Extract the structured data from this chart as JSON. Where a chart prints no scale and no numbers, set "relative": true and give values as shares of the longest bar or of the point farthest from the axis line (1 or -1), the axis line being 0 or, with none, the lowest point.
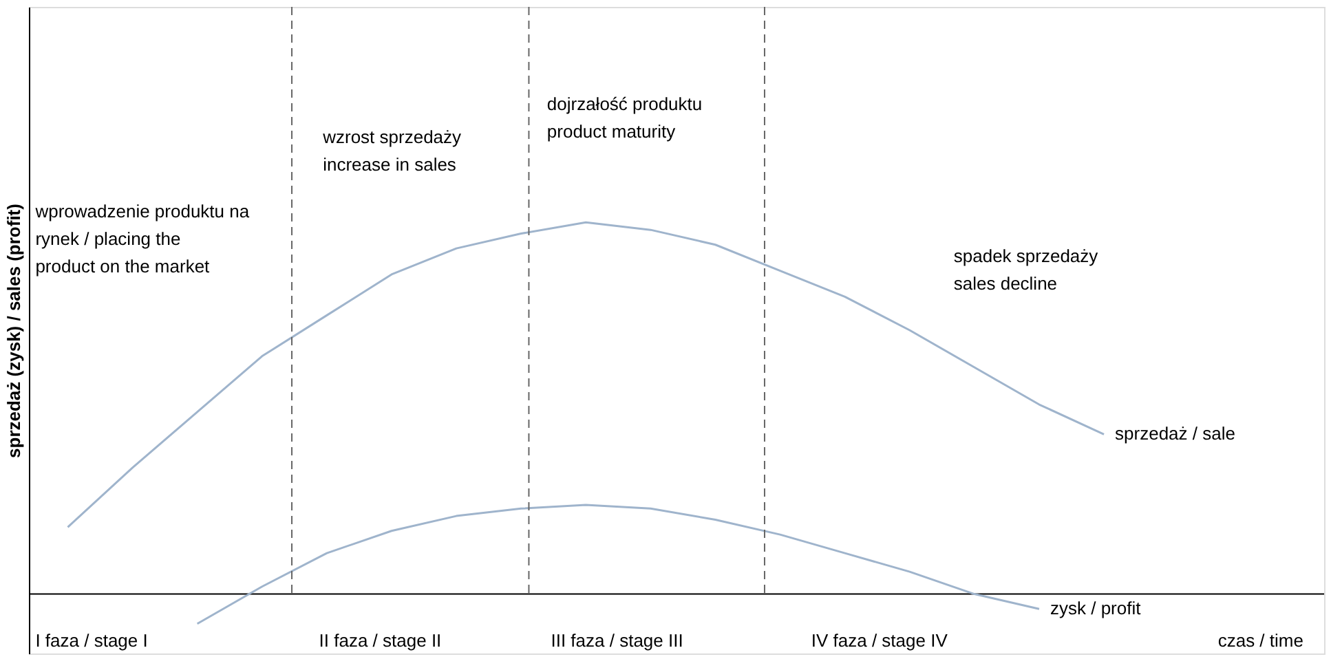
{
  "chart_data": {
    "type": "line",
    "relative": true,
    "ylabel": "sprzedaż (zysk) / sales (profit)",
    "tick_labels": false,
    "grid": false,
    "legend": false,
    "marker": "none",
    "line_style": "solid",
    "categories": [
      null,
      null,
      null,
      null,
      null,
      null,
      null,
      null,
      null,
      null,
      null,
      null,
      null,
      null,
      null,
      null,
      null
    ],
    "series": [
      {
        "name": "sprzedaż / sale",
        "color": "#9fb4cc",
        "values": [
          0.18,
          0.34,
          0.49,
          0.64,
          0.75,
          0.86,
          0.93,
          0.97,
          1.0,
          0.98,
          0.94,
          0.87,
          0.8,
          0.71,
          0.61,
          0.51,
          0.43
        ]
      },
      {
        "name": "zysk / profit",
        "color": "#9fb4cc",
        "values": [
          null,
          null,
          -0.08,
          0.02,
          0.11,
          0.17,
          0.21,
          0.23,
          0.24,
          0.23,
          0.2,
          0.16,
          0.11,
          0.06,
          0.0,
          -0.04,
          null
        ]
      }
    ],
    "annotations": [
      "wprowadzenie produktu na rynek / placing the product on the market",
      "wzrost sprzedaży increase in sales",
      "dojrzałość produktu product maturity",
      "spadek sprzedaży sales decline",
      "I faza / stage I",
      "II faza / stage II",
      "III faza / stage III",
      "IV faza / stage IV",
      "czas / time"
    ]
  }
}
